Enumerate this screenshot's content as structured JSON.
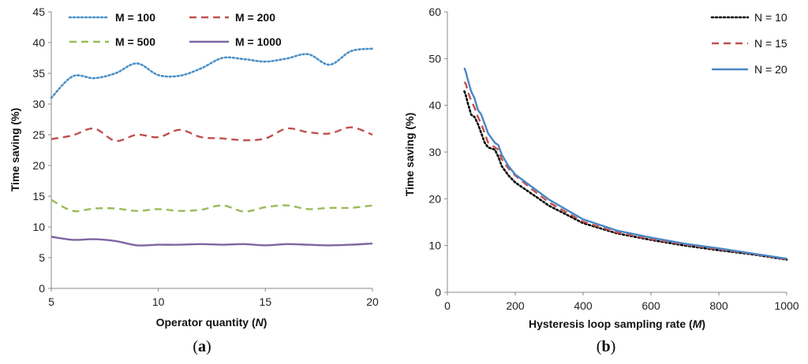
{
  "captions": {
    "a": "a",
    "b": "b"
  },
  "chart_data": [
    {
      "type": "line",
      "panel": "a",
      "title": "",
      "xlabel_prefix": "Operator quantity (",
      "xlabel_var": "N",
      "xlabel_suffix": ")",
      "ylabel": "Time saving (%)",
      "xlim": [
        5,
        20
      ],
      "ylim": [
        0,
        45
      ],
      "xticks": [
        5,
        10,
        15,
        20
      ],
      "yticks": [
        0,
        5,
        10,
        15,
        20,
        25,
        30,
        35,
        40,
        45
      ],
      "grid": false,
      "legend_position": "top",
      "x": [
        5,
        6,
        7,
        8,
        9,
        10,
        11,
        12,
        13,
        14,
        15,
        16,
        17,
        18,
        19,
        20
      ],
      "series": [
        {
          "name": "M = 100",
          "color": "#4a90c8",
          "style": "dotted",
          "values": [
            31,
            34.5,
            34.2,
            35,
            36.6,
            34.7,
            34.6,
            35.8,
            37.5,
            37.3,
            36.9,
            37.4,
            38.1,
            36.4,
            38.6,
            39
          ]
        },
        {
          "name": "M = 200",
          "color": "#c0504d",
          "style": "dashed",
          "values": [
            24.3,
            24.9,
            26,
            24,
            25,
            24.6,
            25.8,
            24.6,
            24.4,
            24.1,
            24.4,
            26,
            25.4,
            25.2,
            26.2,
            25
          ]
        },
        {
          "name": "M = 500",
          "color": "#9bbb59",
          "style": "dashed",
          "values": [
            14.4,
            12.6,
            13,
            13,
            12.6,
            12.9,
            12.6,
            12.8,
            13.5,
            12.5,
            13.2,
            13.5,
            12.9,
            13.1,
            13.1,
            13.5
          ]
        },
        {
          "name": "M = 1000",
          "color": "#8064a2",
          "style": "solid",
          "values": [
            8.4,
            7.9,
            8,
            7.7,
            7,
            7.1,
            7.1,
            7.2,
            7.1,
            7.2,
            7,
            7.2,
            7.1,
            7,
            7.1,
            7.3
          ]
        }
      ]
    },
    {
      "type": "line",
      "panel": "b",
      "title": "",
      "xlabel_prefix": "Hysteresis loop sampling rate (",
      "xlabel_var": "M",
      "xlabel_suffix": ")",
      "ylabel": "Time saving (%)",
      "xlim": [
        0,
        1000
      ],
      "ylim": [
        0,
        60
      ],
      "xticks": [
        0,
        200,
        400,
        600,
        800,
        1000
      ],
      "yticks": [
        0,
        10,
        20,
        30,
        40,
        50,
        60
      ],
      "grid": false,
      "legend_position": "top-right",
      "series": [
        {
          "name": "N = 10",
          "color": "#000000",
          "style": "dotted",
          "x": [
            50,
            55,
            60,
            70,
            80,
            90,
            100,
            110,
            120,
            140,
            150,
            160,
            180,
            200,
            250,
            300,
            400,
            500,
            600,
            700,
            800,
            900,
            1000
          ],
          "y": [
            43,
            42,
            40.5,
            38,
            37.5,
            36,
            34,
            32,
            31,
            30.5,
            29,
            27,
            25,
            23.5,
            21,
            18.5,
            14.8,
            12.6,
            11.2,
            10,
            9,
            8.1,
            7
          ]
        },
        {
          "name": "N = 15",
          "color": "#c0504d",
          "style": "dashed",
          "x": [
            50,
            55,
            60,
            70,
            80,
            90,
            100,
            110,
            120,
            140,
            150,
            160,
            180,
            200,
            250,
            300,
            400,
            500,
            600,
            700,
            800,
            900,
            1000
          ],
          "y": [
            45,
            44.5,
            43,
            41,
            39.5,
            37.5,
            36,
            34,
            32,
            31,
            30.5,
            28.5,
            26.5,
            25,
            22,
            19.2,
            15.1,
            12.8,
            11.4,
            10.2,
            9.2,
            8.2,
            7.1
          ]
        },
        {
          "name": "N = 20",
          "color": "#4a86c5",
          "style": "solid",
          "x": [
            50,
            55,
            60,
            70,
            80,
            90,
            100,
            110,
            120,
            140,
            150,
            160,
            180,
            200,
            250,
            300,
            400,
            500,
            600,
            700,
            800,
            900,
            1000
          ],
          "y": [
            48,
            47,
            45.5,
            43,
            41.5,
            39,
            38,
            36,
            34,
            32,
            31.5,
            29.5,
            27,
            25.2,
            22.5,
            19.8,
            15.6,
            13.2,
            11.7,
            10.4,
            9.4,
            8.3,
            7.2
          ]
        }
      ]
    }
  ]
}
